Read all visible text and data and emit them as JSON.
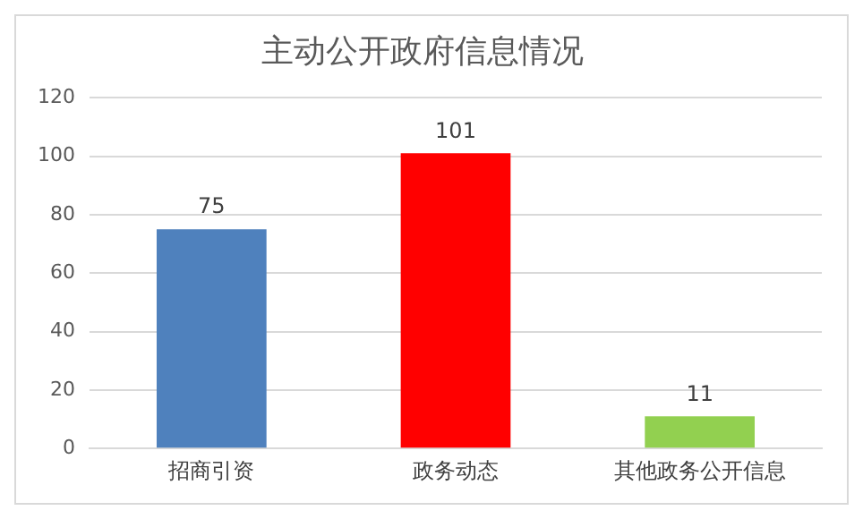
{
  "chart_data": {
    "type": "bar",
    "title": "主动公开政府信息情况",
    "categories": [
      "招商引资",
      "政务动态",
      "其他政务公开信息"
    ],
    "values": [
      75,
      101,
      11
    ],
    "colors": [
      "#4f81bd",
      "#ff0000",
      "#92d050"
    ],
    "ylim": [
      0,
      120
    ],
    "yticks": [
      0,
      20,
      40,
      60,
      80,
      100,
      120
    ],
    "grid": "y",
    "data_labels": true
  }
}
